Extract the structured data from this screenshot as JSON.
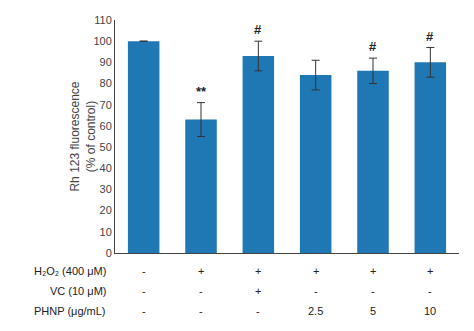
{
  "chart_data": {
    "type": "bar",
    "categories": [
      null,
      null,
      null,
      null,
      null,
      null
    ],
    "values": [
      100,
      63,
      93,
      84,
      86,
      90
    ],
    "errors": [
      0,
      8,
      7,
      7,
      6,
      7
    ],
    "ylabel": "Rh 123 fluorescence\n(% of control)",
    "ylim": [
      0,
      110
    ],
    "yticks": [
      0,
      10,
      20,
      30,
      40,
      50,
      60,
      70,
      80,
      90,
      100,
      110
    ],
    "grid": false,
    "annotations": [
      {
        "text": "**",
        "category_index": 1
      },
      {
        "text": "#",
        "category_index": 2
      },
      {
        "text": "#",
        "category_index": 4
      },
      {
        "text": "#",
        "category_index": 5
      }
    ],
    "table": {
      "row_labels": [
        "H₂O₂ (400 μM)",
        "VC (10 μM)",
        "PHNP (μg/mL)"
      ],
      "rows": [
        [
          "-",
          "+",
          "+",
          "+",
          "+",
          "+"
        ],
        [
          "-",
          "-",
          "+",
          "-",
          "-",
          "-"
        ],
        [
          "-",
          "-",
          "-",
          "2.5",
          "5",
          "10"
        ]
      ]
    }
  }
}
